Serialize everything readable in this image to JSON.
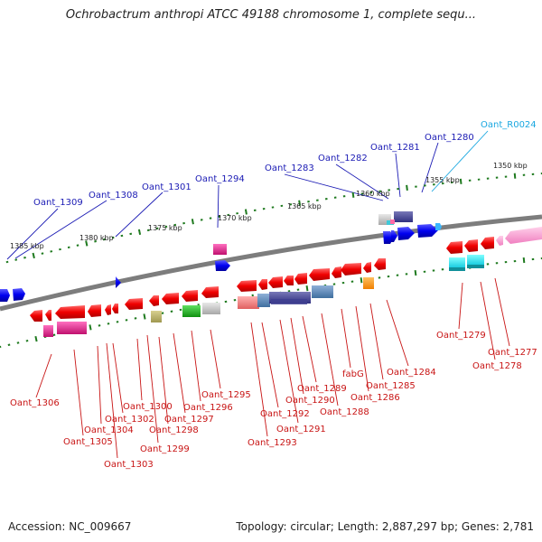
{
  "title": "Ochrobactrum anthropi ATCC 49188 chromosome 1, complete sequ...",
  "footer": {
    "accession": "Accession: NC_009667",
    "stats": "Topology: circular; Length: 2,887,297 bp; Genes: 2,781"
  },
  "colors": {
    "backbone": "#8c8c8c",
    "tick": "#1f7a1f",
    "forward_label": "#1a1ab4",
    "reverse_label": "#c81414",
    "rna_label": "#19a7e0"
  },
  "scale_labels": [
    "1385 kbp",
    "1380 kbp",
    "1375 kbp",
    "1370 kbp",
    "1365 kbp",
    "1360 kbp",
    "1355 kbp",
    "1350 kbp"
  ],
  "top_labels": [
    "Oant_1309",
    "Oant_1308",
    "Oant_1301",
    "Oant_1294",
    "Oant_1283",
    "Oant_1282",
    "Oant_1281",
    "Oant_1280",
    "Oant_R0024"
  ],
  "bottom_labels": [
    "Oant_1306",
    "Oant_1305",
    "Oant_1304",
    "Oant_1303",
    "Oant_1302",
    "Oant_1300",
    "Oant_1299",
    "Oant_1298",
    "Oant_1297",
    "Oant_1296",
    "Oant_1295",
    "Oant_1293",
    "Oant_1292",
    "Oant_1291",
    "Oant_1290",
    "Oant_1289",
    "Oant_1288",
    "fabG",
    "Oant_1286",
    "Oant_1285",
    "Oant_1284",
    "Oant_1279",
    "Oant_1278",
    "Oant_1277"
  ]
}
